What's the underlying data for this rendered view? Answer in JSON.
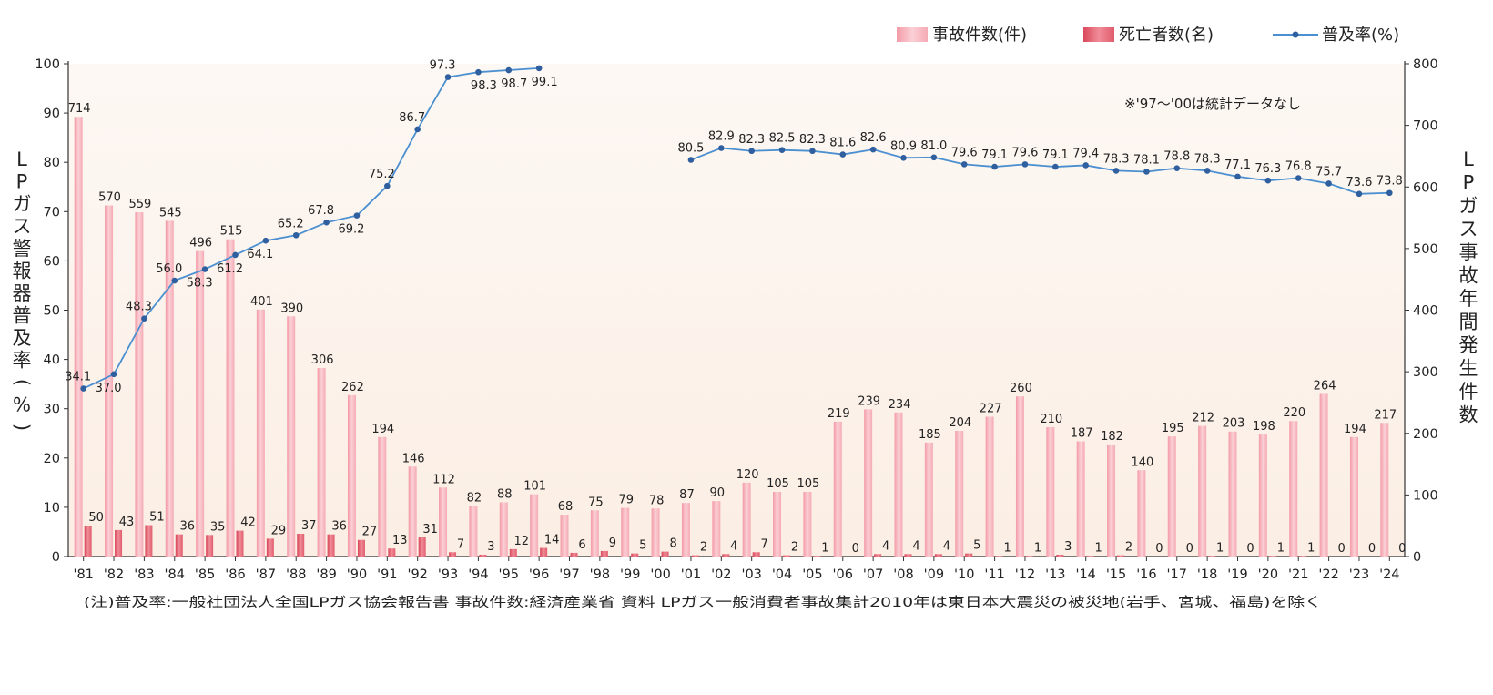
{
  "legend": {
    "accidents": "事故件数(件)",
    "deaths": "死亡者数(名)",
    "rate": "普及率(%)"
  },
  "left_axis_label": "LPガス警報器普及率(%)",
  "right_axis_label": "LPガス事故年間発生件数",
  "note": "※'97〜'00は統計データなし",
  "footnote": "(注)普及率:一般社団法人全国LPガス協会報告書 事故件数:経済産業省 資料 LPガス一般消費者事故集計2010年は東日本大震災の被災地(岩手、宮城、福島)を除く",
  "colors": {
    "accidents": "#f7b8c0",
    "deaths": "#e8707f",
    "rate": "#4a8fd0",
    "rate_point": "#2f5f9e",
    "plot_bg_top": "#fdf8f4",
    "plot_bg_bottom": "#fbeee4"
  },
  "chart_data": {
    "type": "bar",
    "categories": [
      "'81",
      "'82",
      "'83",
      "'84",
      "'85",
      "'86",
      "'87",
      "'88",
      "'89",
      "'90",
      "'91",
      "'92",
      "'93",
      "'94",
      "'95",
      "'96",
      "'97",
      "'98",
      "'99",
      "'00",
      "'01",
      "'02",
      "'03",
      "'04",
      "'05",
      "'06",
      "'07",
      "'08",
      "'09",
      "'10",
      "'11",
      "'12",
      "'13",
      "'14",
      "'15",
      "'16",
      "'17",
      "'18",
      "'19",
      "'20",
      "'21",
      "'22",
      "'23",
      "'24"
    ],
    "series": [
      {
        "name": "事故件数(件)",
        "type": "bar",
        "axis": "right",
        "values": [
          714,
          570,
          559,
          545,
          496,
          515,
          401,
          390,
          306,
          262,
          194,
          146,
          112,
          82,
          88,
          101,
          68,
          75,
          79,
          78,
          87,
          90,
          120,
          105,
          105,
          219,
          239,
          234,
          185,
          204,
          227,
          260,
          210,
          187,
          182,
          140,
          195,
          212,
          203,
          198,
          220,
          264,
          194,
          217
        ]
      },
      {
        "name": "死亡者数(名)",
        "type": "bar",
        "axis": "right",
        "values": [
          50,
          43,
          51,
          36,
          35,
          42,
          29,
          37,
          36,
          27,
          13,
          31,
          7,
          3,
          12,
          14,
          6,
          9,
          5,
          8,
          2,
          4,
          7,
          2,
          1,
          0,
          4,
          4,
          4,
          5,
          1,
          1,
          3,
          1,
          2,
          0,
          0,
          1,
          0,
          1,
          1,
          0,
          0,
          0
        ]
      },
      {
        "name": "普及率(%)",
        "type": "line",
        "axis": "left",
        "values": [
          34.1,
          37.0,
          48.3,
          56.0,
          58.3,
          61.2,
          64.1,
          65.2,
          67.8,
          69.2,
          75.2,
          86.7,
          97.3,
          98.3,
          98.7,
          99.1,
          null,
          null,
          null,
          null,
          80.5,
          82.9,
          82.3,
          82.5,
          82.3,
          81.6,
          82.6,
          80.9,
          81.0,
          79.6,
          79.1,
          79.6,
          79.1,
          79.4,
          78.3,
          78.1,
          78.8,
          78.3,
          77.1,
          76.3,
          76.8,
          75.7,
          73.6,
          73.8
        ],
        "labels": [
          "34.1",
          "37.0",
          "48.3",
          "56.0",
          "58.3",
          "61.2",
          "64.1",
          "65.2",
          "67.8",
          "69.2",
          "75.2",
          "86.7",
          "97.3",
          "98.3",
          "98.7",
          "99.1",
          "",
          "",
          "",
          "",
          "80.5",
          "82.9",
          "82.3",
          "82.5",
          "82.3",
          "81.6",
          "82.6",
          "80.9",
          "81.0",
          "79.6",
          "79.1",
          "79.6",
          "79.1",
          "79.4",
          "78.3",
          "78.1",
          "78.8",
          "78.3",
          "77.1",
          "76.3",
          "76.8",
          "75.7",
          "73.6",
          "73.8"
        ]
      }
    ],
    "y_left": {
      "label": "LPガス警報器普及率(%)",
      "lim": [
        0,
        100
      ],
      "ticks": [
        0,
        10,
        20,
        30,
        40,
        50,
        60,
        70,
        80,
        90,
        100
      ]
    },
    "y_right": {
      "label": "LPガス事故年間発生件数",
      "lim": [
        0,
        800
      ],
      "ticks": [
        0,
        100,
        200,
        300,
        400,
        500,
        600,
        700,
        800
      ]
    },
    "legend_position": "top-right",
    "grid": false
  }
}
